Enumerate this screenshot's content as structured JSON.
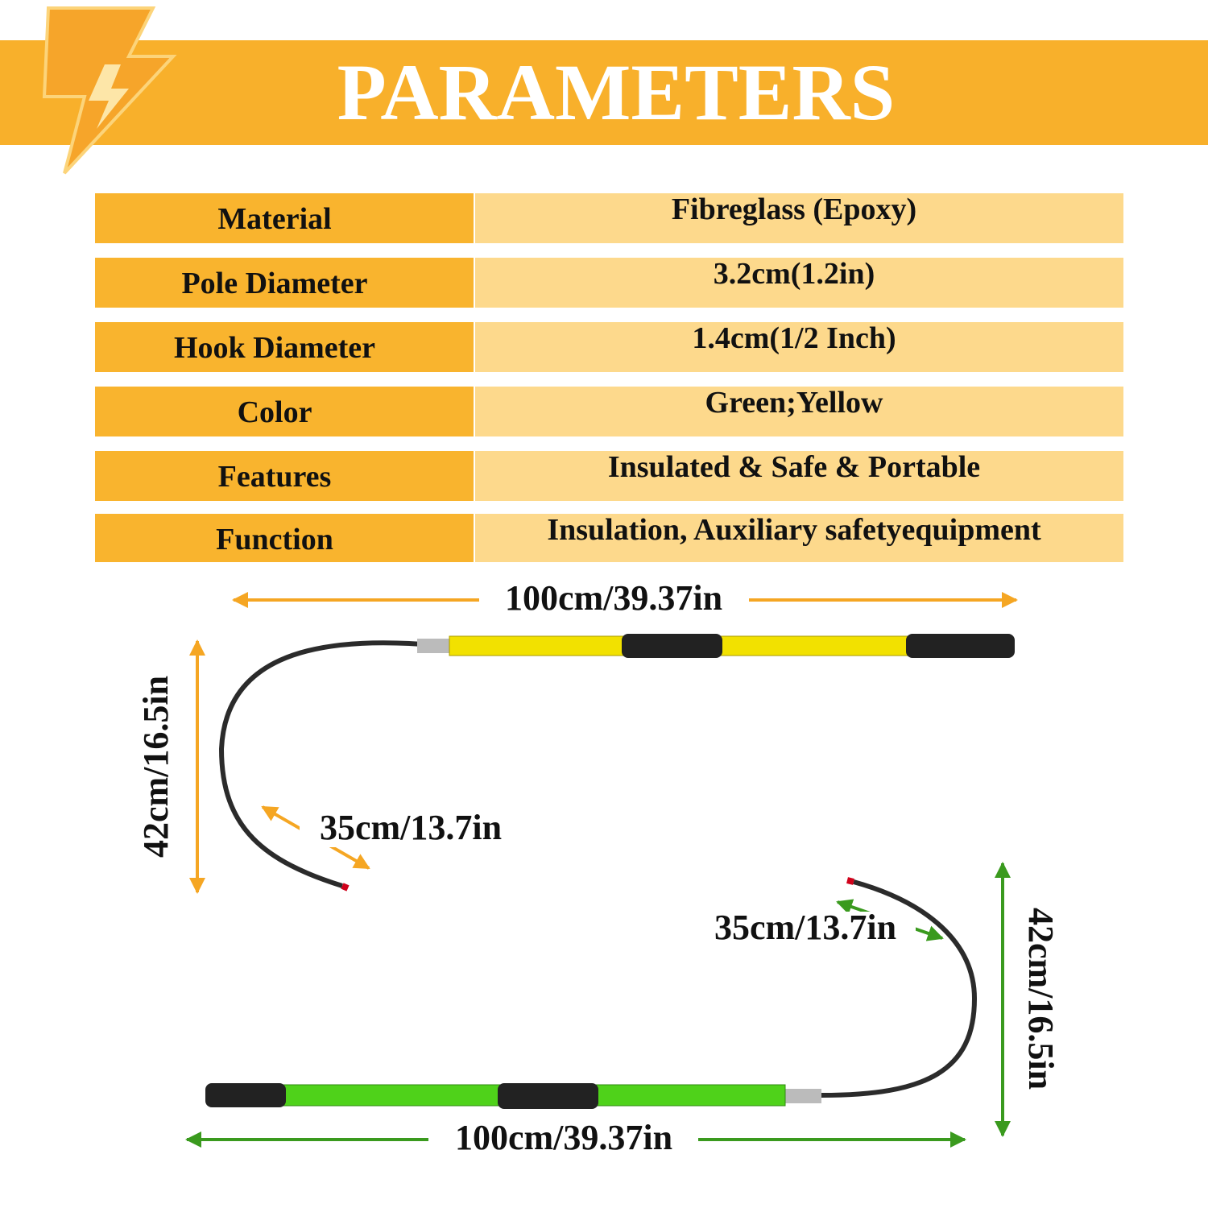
{
  "header": {
    "title": "PARAMETERS"
  },
  "table": {
    "rows": [
      [
        "Material",
        "Fibreglass (Epoxy)"
      ],
      [
        "Pole Diameter",
        "3.2cm(1.2in)"
      ],
      [
        "Hook Diameter",
        "1.4cm(1/2 Inch)"
      ],
      [
        "Color",
        "Green;Yellow"
      ],
      [
        "Features",
        "Insulated & Safe & Portable"
      ],
      [
        "Function",
        "Insulation, Auxiliary safetyequipment"
      ]
    ]
  },
  "yellow_tool": {
    "length": "100cm/39.37in",
    "height": "42cm/16.5in",
    "hook": "35cm/13.7in"
  },
  "green_tool": {
    "length": "100cm/39.37in",
    "height": "42cm/16.5in",
    "hook": "35cm/13.7in"
  }
}
